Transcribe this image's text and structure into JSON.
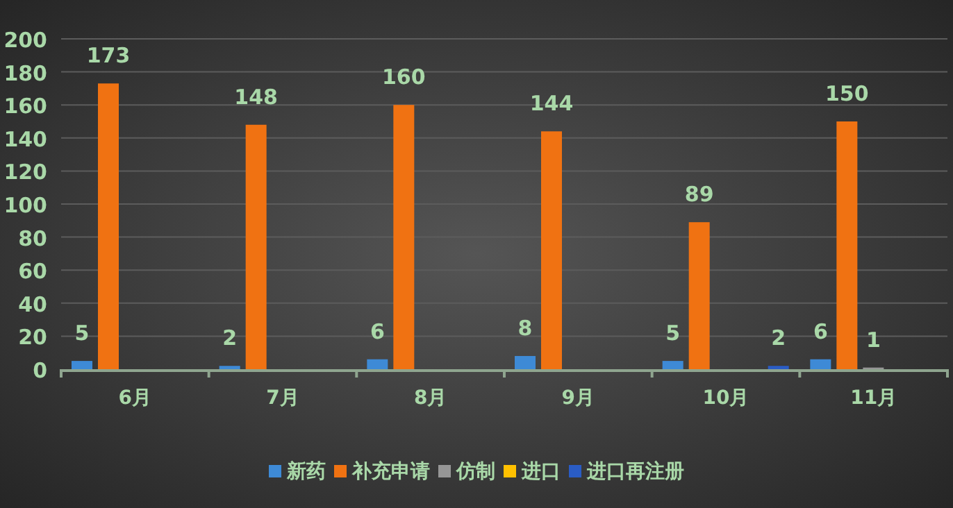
{
  "chart_data": {
    "type": "bar",
    "categories": [
      "6月",
      "7月",
      "8月",
      "9月",
      "10月",
      "11月"
    ],
    "series": [
      {
        "name": "新药",
        "color": "#3e8ad6",
        "values": [
          5,
          2,
          6,
          8,
          5,
          6
        ],
        "value_labels": [
          "5",
          "2",
          "6",
          "8",
          "5",
          "6"
        ]
      },
      {
        "name": "补充申请",
        "color": "#f07212",
        "values": [
          173,
          148,
          160,
          144,
          89,
          150
        ],
        "value_labels": [
          "173",
          "148",
          "160",
          "144",
          "89",
          "150"
        ]
      },
      {
        "name": "仿制",
        "color": "#969696",
        "values": [
          0,
          0,
          0,
          0,
          0,
          1
        ],
        "value_labels": [
          null,
          null,
          null,
          null,
          null,
          "1"
        ]
      },
      {
        "name": "进口",
        "color": "#ffc000",
        "values": [
          0,
          0,
          0,
          0,
          0,
          0
        ],
        "value_labels": [
          null,
          null,
          null,
          null,
          null,
          null
        ]
      },
      {
        "name": "进口再注册",
        "color": "#2a5cc4",
        "values": [
          0,
          0,
          0,
          0,
          2,
          0
        ],
        "value_labels": [
          null,
          null,
          null,
          null,
          "2",
          null
        ]
      }
    ],
    "ylim": [
      0,
      200
    ],
    "yticks": [
      0,
      20,
      40,
      60,
      80,
      100,
      120,
      140,
      160,
      180,
      200
    ],
    "grid": "y",
    "legend": "bottom"
  }
}
